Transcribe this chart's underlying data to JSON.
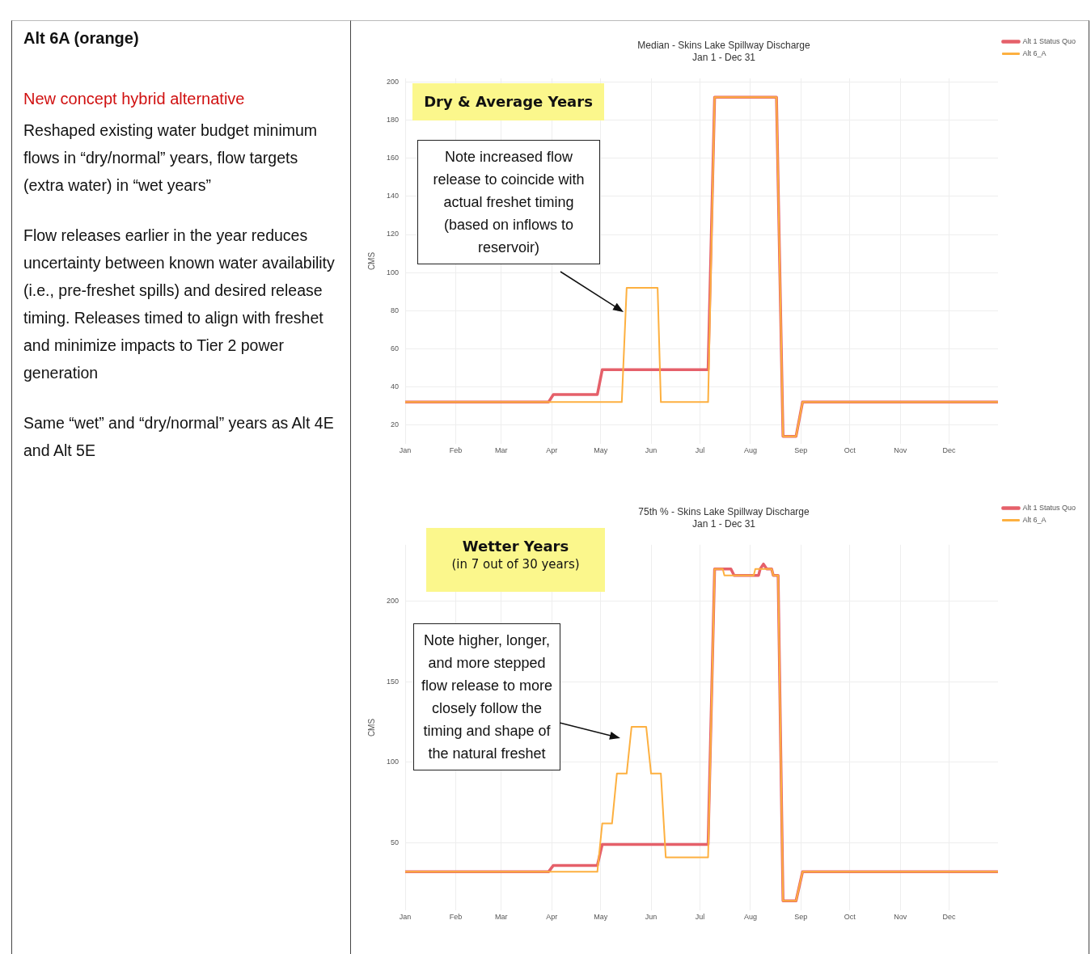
{
  "chart_data": [
    {
      "type": "other",
      "title": "Alt 6A (orange)",
      "subtitle": "New concept hybrid alternative",
      "annotations": [
        "Reshaped existing water budget minimum flows in “dry/normal” years, flow targets (extra water) in “wet years”",
        "Flow releases earlier in the year reduces uncertainty between known water availability (i.e., pre-freshet spills) and desired release timing. Releases timed to align with freshet and minimize impacts to Tier 2 power generation",
        "Same “wet” and “dry/normal” years as Alt 4E and Alt 5E"
      ]
    },
    {
      "type": "line",
      "title": "Median - Skins Lake Spillway Discharge",
      "subtitle": "Jan 1 - Dec 31",
      "ylabel": "CMS",
      "xlim": [
        "--01-01",
        "--12-31"
      ],
      "xticks": [
        {
          "value": "--01-01",
          "label": "Jan"
        },
        {
          "value": "--02-01",
          "label": "Feb"
        },
        {
          "value": "--03-01",
          "label": "Mar"
        },
        {
          "value": "--04-01",
          "label": "Apr"
        },
        {
          "value": "--05-01",
          "label": "May"
        },
        {
          "value": "--06-01",
          "label": "Jun"
        },
        {
          "value": "--07-01",
          "label": "Jul"
        },
        {
          "value": "--08-01",
          "label": "Aug"
        },
        {
          "value": "--09-01",
          "label": "Sep"
        },
        {
          "value": "--10-01",
          "label": "Oct"
        },
        {
          "value": "--11-01",
          "label": "Nov"
        },
        {
          "value": "--12-01",
          "label": "Dec"
        }
      ],
      "ylim": [
        10,
        202
      ],
      "yticks": [
        20,
        40,
        60,
        80,
        100,
        120,
        140,
        160,
        180,
        200
      ],
      "grid": true,
      "legend": "top right",
      "marker": "none",
      "line_style": "solid",
      "series": [
        {
          "name": "Alt 1 Status Quo",
          "color": "#e5606a",
          "x": [
            "--01-01",
            "--03-30",
            "--04-02",
            "--04-29",
            "--05-02",
            "--07-06",
            "--07-10",
            "--08-17",
            "--08-21",
            "--08-29",
            "--09-02",
            "--12-31"
          ],
          "values": [
            32,
            32,
            36,
            36,
            49,
            49,
            192,
            192,
            14,
            14,
            32,
            32
          ]
        },
        {
          "name": "Alt 6_A",
          "color": "#fdb040",
          "x": [
            "--01-01",
            "--05-14",
            "--05-17",
            "--06-05",
            "--06-07",
            "--07-06",
            "--07-10",
            "--08-17",
            "--08-21",
            "--08-29",
            "--09-02",
            "--12-31"
          ],
          "values": [
            32,
            32,
            92,
            92,
            32,
            32,
            192,
            192,
            14,
            14,
            32,
            32
          ]
        }
      ],
      "annotations": [
        "Dry & Average Years",
        "Note increased flow release to coincide with actual freshet timing (based on inflows to reservoir)"
      ]
    },
    {
      "type": "line",
      "title": "75th % - Skins Lake Spillway Discharge",
      "subtitle": "Jan 1 - Dec 31",
      "ylabel": "CMS",
      "xlim": [
        "--01-01",
        "--12-31"
      ],
      "xticks": [
        {
          "value": "--01-01",
          "label": "Jan"
        },
        {
          "value": "--02-01",
          "label": "Feb"
        },
        {
          "value": "--03-01",
          "label": "Mar"
        },
        {
          "value": "--04-01",
          "label": "Apr"
        },
        {
          "value": "--05-01",
          "label": "May"
        },
        {
          "value": "--06-01",
          "label": "Jun"
        },
        {
          "value": "--07-01",
          "label": "Jul"
        },
        {
          "value": "--08-01",
          "label": "Aug"
        },
        {
          "value": "--09-01",
          "label": "Sep"
        },
        {
          "value": "--10-01",
          "label": "Oct"
        },
        {
          "value": "--11-01",
          "label": "Nov"
        },
        {
          "value": "--12-01",
          "label": "Dec"
        }
      ],
      "ylim": [
        8,
        235
      ],
      "yticks": [
        50,
        100,
        150,
        200
      ],
      "grid": true,
      "legend": "top right",
      "marker": "none",
      "line_style": "solid",
      "series": [
        {
          "name": "Alt 1 Status Quo",
          "color": "#e5606a",
          "x": [
            "--01-01",
            "--03-30",
            "--04-02",
            "--04-29",
            "--05-02",
            "--07-06",
            "--07-10",
            "--07-20",
            "--07-22",
            "--08-06",
            "--08-07",
            "--08-09",
            "--08-11",
            "--08-14",
            "--08-15",
            "--08-18",
            "--08-21",
            "--08-29",
            "--09-02",
            "--12-31"
          ],
          "values": [
            32,
            32,
            36,
            36,
            49,
            49,
            220,
            220,
            216,
            216,
            220,
            223,
            220,
            220,
            216,
            216,
            14,
            14,
            32,
            32
          ]
        },
        {
          "name": "Alt 6_A",
          "color": "#fdb040",
          "x": [
            "--01-01",
            "--04-29",
            "--05-02",
            "--05-08",
            "--05-11",
            "--05-17",
            "--05-20",
            "--05-29",
            "--06-01",
            "--06-07",
            "--06-10",
            "--07-06",
            "--07-10",
            "--07-15",
            "--07-16",
            "--08-03",
            "--08-04",
            "--08-14",
            "--08-15",
            "--08-18",
            "--08-21",
            "--08-29",
            "--09-02",
            "--12-31"
          ],
          "values": [
            32,
            32,
            62,
            62,
            93,
            93,
            122,
            122,
            93,
            93,
            41,
            41,
            220,
            220,
            216,
            216,
            220,
            220,
            216,
            216,
            14,
            14,
            32,
            32
          ]
        }
      ],
      "annotations": [
        "Wetter Years",
        "(in 7 out of 30 years)",
        "Note higher, longer, and more stepped flow release to more closely follow the timing and shape of the natural freshet"
      ]
    }
  ]
}
